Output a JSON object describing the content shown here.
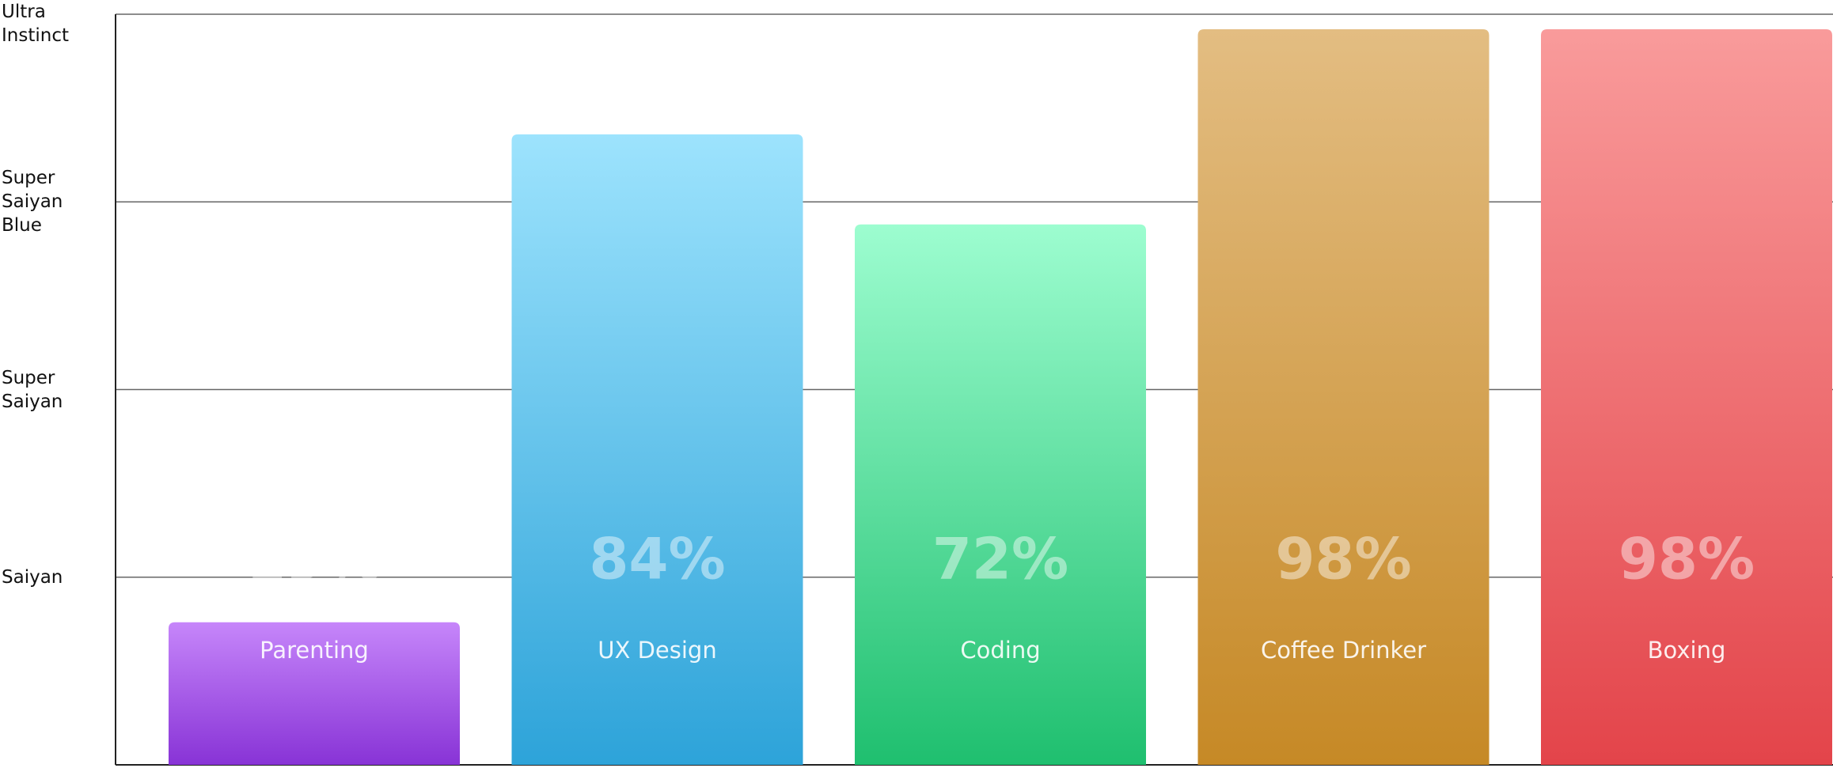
{
  "chart_data": {
    "type": "bar",
    "categories": [
      "Parenting",
      "UX Design",
      "Coding",
      "Coffee Drinker",
      "Boxing"
    ],
    "values": [
      19,
      84,
      72,
      98,
      98
    ],
    "value_labels": [
      "19%",
      "84%",
      "72%",
      "98%",
      "98%"
    ],
    "colors": [
      [
        "#c686fa",
        "#8833d6"
      ],
      [
        "#9de3fd",
        "#2da3d9"
      ],
      [
        "#9dfdd0",
        "#1fbf6f"
      ],
      [
        "#e3bd82",
        "#c68926"
      ],
      [
        "#f99b9b",
        "#e3444a"
      ]
    ],
    "ylim": [
      0,
      100
    ],
    "yticks": [
      {
        "value": 25,
        "label": "Saiyan"
      },
      {
        "value": 50,
        "label": "Super Saiyan"
      },
      {
        "value": 75,
        "label": "Super Saiyan Blue"
      },
      {
        "value": 100,
        "label": "Ultra Instinct"
      }
    ],
    "grid": true
  }
}
